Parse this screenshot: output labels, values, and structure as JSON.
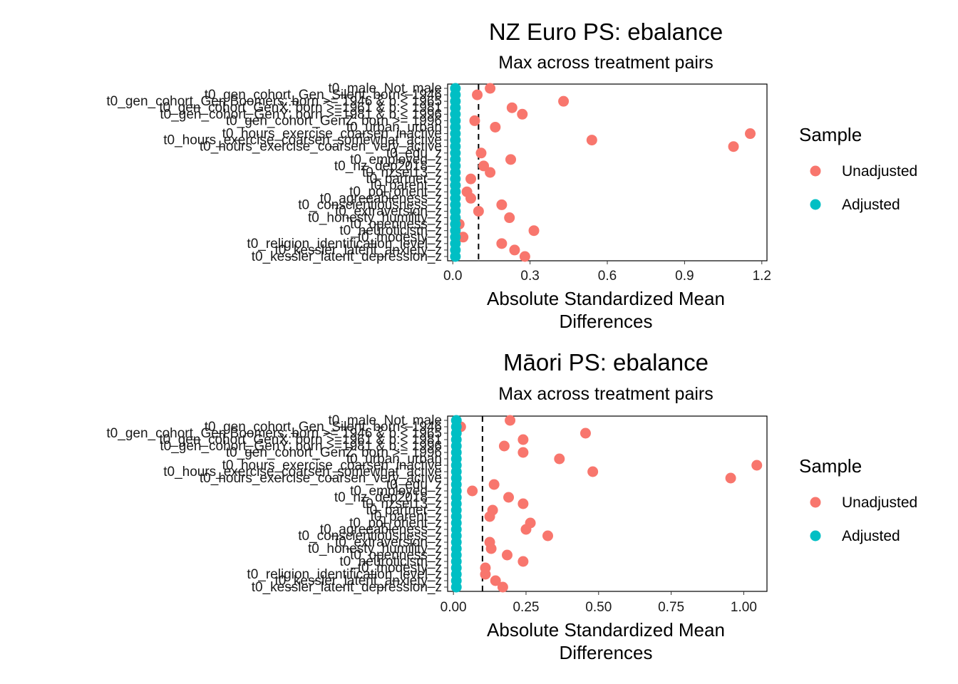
{
  "chart_data": [
    {
      "type": "scatter",
      "title": "NZ Euro PS: ebalance",
      "subtitle": "Max across treatment pairs",
      "xlabel": [
        "Absolute Standardized Mean",
        "Differences"
      ],
      "xlim": [
        -0.02,
        1.22
      ],
      "xticks": [
        0.0,
        0.3,
        0.6,
        0.9,
        1.2
      ],
      "xtick_labels": [
        "0.0",
        "0.3",
        "0.6",
        "0.9",
        "1.2"
      ],
      "threshold": 0.1,
      "categories": [
        "t0_male_Not_male",
        "t0_gen_cohort_Gen_Silent: born< 1946",
        "t0_gen_cohort_Gen Boomers: born >= 1946 & b.< 1965",
        "t0_gen_cohort_GenX: born >=1961 & b.< 1981",
        "t0_gen_cohort_GenY: born >=1981 & b.< 1996",
        "t0_gen_cohort_GenZ: born >= 1996",
        "t0_urban_urban",
        "t0_hours_exercise_coarsen_inactive",
        "t0_hours_exercise_coarsen_somewhat_active",
        "t0_hours_exercise_coarsen_very_active",
        "t0_edu_z",
        "t0_employed_z",
        "t0_nz_dep2018_z",
        "t0_nzsei13_z",
        "t0_partner_z",
        "t0_parent_z",
        "t0_pol_orient_z",
        "t0_agreeableness_z",
        "t0_conscientiousness_z",
        "t0_extraversion_z",
        "t0_honesty_humility_z",
        "t0_openness_z",
        "t0_neuroticism_z",
        "t0_modesty_z",
        "t0_religion_identification_level_z",
        "t0_kessler_latent_anxiety_z",
        "t0_kessler_latent_depression_z"
      ],
      "series": [
        {
          "name": "Unadjusted",
          "color": "#F8766D",
          "values": [
            0.145,
            0.095,
            0.43,
            0.23,
            0.27,
            0.085,
            0.165,
            1.155,
            0.54,
            1.09,
            0.11,
            0.225,
            0.12,
            0.145,
            0.07,
            0.01,
            0.055,
            0.07,
            0.19,
            0.1,
            0.22,
            0.025,
            0.315,
            0.04,
            0.19,
            0.24,
            0.28
          ]
        },
        {
          "name": "Adjusted",
          "color": "#00BFC4",
          "values": [
            0.01,
            0.01,
            0.01,
            0.01,
            0.01,
            0.01,
            0.01,
            0.01,
            0.01,
            0.01,
            0.01,
            0.01,
            0.01,
            0.01,
            0.01,
            0.01,
            0.01,
            0.01,
            0.01,
            0.01,
            0.01,
            0.01,
            0.01,
            0.01,
            0.01,
            0.01,
            0.01
          ]
        }
      ]
    },
    {
      "type": "scatter",
      "title": "Māori PS: ebalance",
      "subtitle": "Max across treatment pairs",
      "xlabel": [
        "Absolute Standardized Mean",
        "Differences"
      ],
      "xlim": [
        -0.02,
        1.08
      ],
      "xticks": [
        0.0,
        0.25,
        0.5,
        0.75,
        1.0
      ],
      "xtick_labels": [
        "0.00",
        "0.25",
        "0.50",
        "0.75",
        "1.00"
      ],
      "threshold": 0.1,
      "categories": [
        "t0_male_Not_male",
        "t0_gen_cohort_Gen_Silent: born< 1946",
        "t0_gen_cohort_Gen Boomers: born >= 1946 & b.< 1965",
        "t0_gen_cohort_GenX: born >=1961 & b.< 1981",
        "t0_gen_cohort_GenY: born >=1981 & b.< 1996",
        "t0_gen_cohort_GenZ: born >= 1996",
        "t0_urban_urban",
        "t0_hours_exercise_coarsen_inactive",
        "t0_hours_exercise_coarsen_somewhat_active",
        "t0_hours_exercise_coarsen_very_active",
        "t0_edu_z",
        "t0_employed_z",
        "t0_nz_dep2018_z",
        "t0_nzsei13_z",
        "t0_partner_z",
        "t0_parent_z",
        "t0_pol_orient_z",
        "t0_agreeableness_z",
        "t0_conscientiousness_z",
        "t0_extraversion_z",
        "t0_honesty_humility_z",
        "t0_openness_z",
        "t0_neuroticism_z",
        "t0_modesty_z",
        "t0_religion_identification_level_z",
        "t0_kessler_latent_anxiety_z",
        "t0_kessler_latent_depression_z"
      ],
      "series": [
        {
          "name": "Unadjusted",
          "color": "#F8766D",
          "values": [
            0.195,
            0.025,
            0.455,
            0.24,
            0.175,
            0.24,
            0.365,
            1.045,
            0.48,
            0.955,
            0.14,
            0.065,
            0.19,
            0.24,
            0.135,
            0.125,
            0.265,
            0.25,
            0.325,
            0.125,
            0.13,
            0.185,
            0.24,
            0.11,
            0.11,
            0.145,
            0.17
          ]
        },
        {
          "name": "Adjusted",
          "color": "#00BFC4",
          "values": [
            0.01,
            0.01,
            0.01,
            0.01,
            0.01,
            0.01,
            0.01,
            0.01,
            0.01,
            0.01,
            0.01,
            0.01,
            0.01,
            0.01,
            0.01,
            0.01,
            0.01,
            0.01,
            0.01,
            0.01,
            0.01,
            0.01,
            0.01,
            0.01,
            0.01,
            0.01,
            0.01
          ]
        }
      ]
    }
  ],
  "legend": {
    "title": "Sample",
    "items": [
      {
        "label": "Unadjusted",
        "color": "#F8766D"
      },
      {
        "label": "Adjusted",
        "color": "#00BFC4"
      }
    ]
  }
}
